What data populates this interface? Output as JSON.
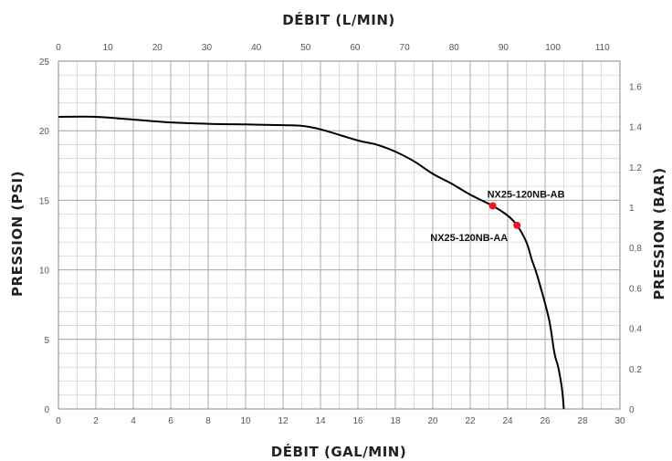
{
  "chart_data": {
    "type": "line",
    "title": "",
    "x_top_label": "DÉBIT (L/MIN)",
    "x_bottom_label": "DÉBIT (GAL/MIN)",
    "y_left_label": "PRESSION (PSI)",
    "y_right_label": "PRESSION (BAR)",
    "x_bottom_range": [
      0,
      30
    ],
    "x_bottom_ticks": [
      "0",
      "2",
      "4",
      "6",
      "8",
      "10",
      "12",
      "14",
      "16",
      "18",
      "20",
      "22",
      "24",
      "26",
      "28",
      "30"
    ],
    "x_top_range": [
      0,
      113.56
    ],
    "x_top_ticks": [
      "0",
      "10",
      "20",
      "30",
      "40",
      "50",
      "60",
      "70",
      "80",
      "90",
      "100",
      "110"
    ],
    "y_left_range": [
      0,
      25
    ],
    "y_left_ticks": [
      "0",
      "5",
      "10",
      "15",
      "20",
      "25"
    ],
    "y_right_range": [
      0,
      1.7237
    ],
    "y_right_ticks": [
      "0",
      "0.2",
      "0.4",
      "0.6",
      "0.8",
      "1",
      "1.2",
      "1.4",
      "1.6"
    ],
    "grid": true,
    "series": [
      {
        "values": [
          [
            0,
            21.0
          ],
          [
            2,
            21.0
          ],
          [
            4,
            20.8
          ],
          [
            6,
            20.6
          ],
          [
            8,
            20.5
          ],
          [
            10,
            20.45
          ],
          [
            12,
            20.4
          ],
          [
            13,
            20.35
          ],
          [
            14,
            20.1
          ],
          [
            16,
            19.3
          ],
          [
            17,
            19.0
          ],
          [
            18,
            18.5
          ],
          [
            19,
            17.8
          ],
          [
            20,
            16.9
          ],
          [
            21,
            16.2
          ],
          [
            22,
            15.4
          ],
          [
            23.2,
            14.6
          ],
          [
            24,
            13.9
          ],
          [
            24.5,
            13.2
          ],
          [
            25,
            12.0
          ],
          [
            25.3,
            10.7
          ],
          [
            25.6,
            9.5
          ],
          [
            26.2,
            6.5
          ],
          [
            26.5,
            4.0
          ],
          [
            26.7,
            3.0
          ],
          [
            26.9,
            1.5
          ],
          [
            27.0,
            0.0
          ]
        ]
      }
    ],
    "annotations": [
      {
        "label": "NX25-120NB-AB",
        "x": 23.2,
        "y": 14.6,
        "color": "#e8191f"
      },
      {
        "label": "NX25-120NB-AA",
        "x": 24.5,
        "y": 13.2,
        "color": "#e8191f"
      }
    ]
  }
}
